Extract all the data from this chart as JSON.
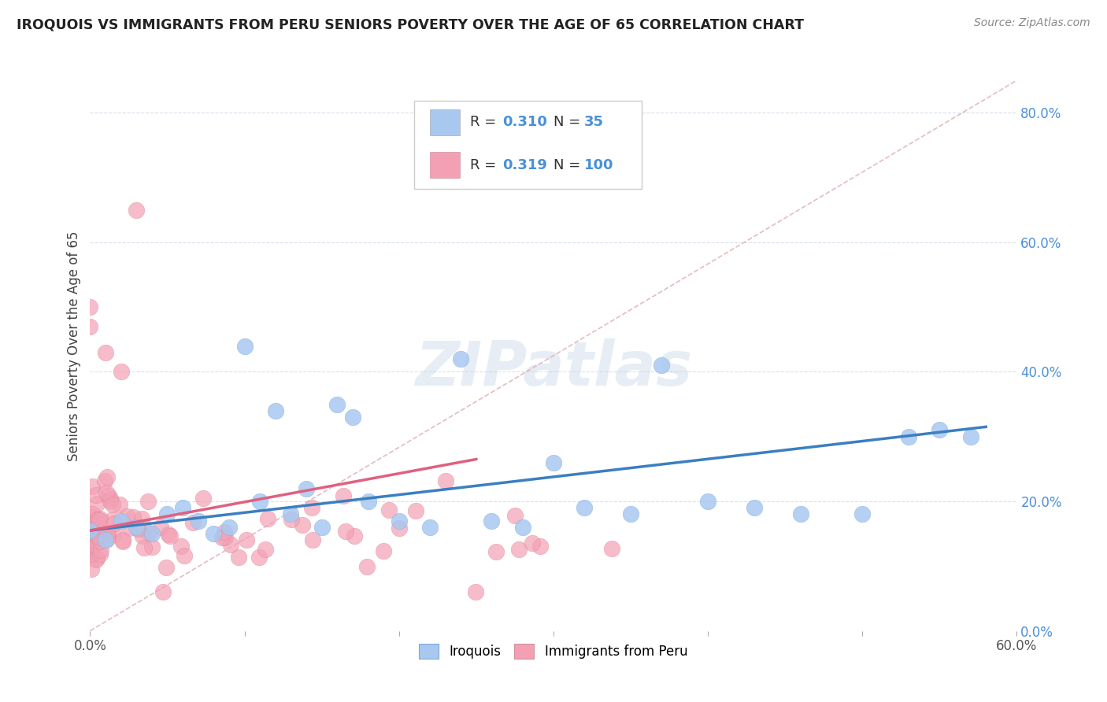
{
  "title": "IROQUOIS VS IMMIGRANTS FROM PERU SENIORS POVERTY OVER THE AGE OF 65 CORRELATION CHART",
  "source": "Source: ZipAtlas.com",
  "ylabel": "Seniors Poverty Over the Age of 65",
  "xlim": [
    0.0,
    0.6
  ],
  "ylim": [
    0.0,
    0.88
  ],
  "y_ticks": [
    0.0,
    0.2,
    0.4,
    0.6,
    0.8
  ],
  "y_tick_labels": [
    "0.0%",
    "20.0%",
    "40.0%",
    "60.0%",
    "80.0%"
  ],
  "iroquois_color": "#a8c8f0",
  "peru_color": "#f4a0b4",
  "iroquois_line_color": "#3a7fc1",
  "peru_line_color": "#e06080",
  "ref_line_color": "#e0b0b8",
  "watermark": "ZIPatlas",
  "legend_r1": "0.310",
  "legend_n1": "35",
  "legend_r2": "0.319",
  "legend_n2": "100"
}
